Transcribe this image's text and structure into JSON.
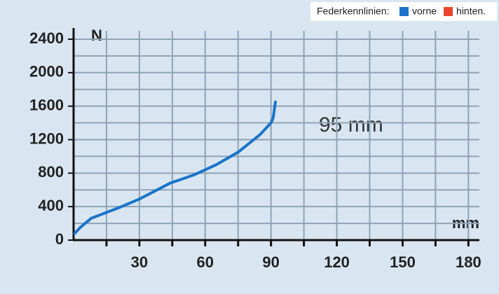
{
  "chart_data": {
    "type": "line",
    "y_label": "N",
    "x_label": "mm",
    "annotation": "95 mm",
    "legend_title": "Federkennlinien:",
    "xlim": [
      0,
      185
    ],
    "xticks": [
      30,
      60,
      90,
      120,
      150,
      180
    ],
    "ylim": [
      0,
      2500
    ],
    "yticks": [
      0,
      400,
      800,
      1200,
      1600,
      2000,
      2400
    ],
    "grid": true,
    "series": [
      {
        "name": "vorne",
        "color": "#1a73c9",
        "x": [
          0.5,
          3,
          8,
          20,
          30,
          44,
          55,
          65,
          75,
          85,
          90,
          91,
          92
        ],
        "values": [
          80,
          150,
          260,
          380,
          490,
          680,
          780,
          900,
          1050,
          1260,
          1400,
          1460,
          1650
        ]
      },
      {
        "name": "hinten.",
        "color": "#e8452c",
        "x": [],
        "values": []
      }
    ]
  }
}
